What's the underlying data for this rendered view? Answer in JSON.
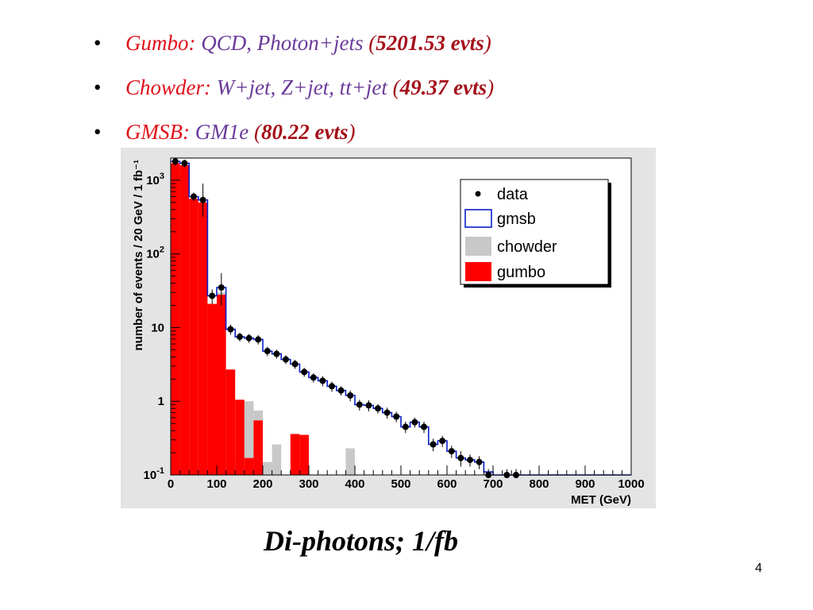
{
  "slide": {
    "bullets": [
      {
        "name": "Gumbo",
        "sep": ":",
        "desc": " QCD, Photon+jets ",
        "open": "(",
        "count": "5201.53 evts",
        "close": ")"
      },
      {
        "name": "Chowder",
        "sep": ":",
        "desc": " W+jet, Z+jet, tt+jet ",
        "open": "(",
        "count": "49.37 evts",
        "close": ")"
      },
      {
        "name": "GMSB",
        "sep": ":",
        "desc": " GM1e  ",
        "open": "(",
        "count": "80.22 evts",
        "close": ")"
      }
    ],
    "caption": "Di-photons; 1/fb",
    "page_number": "4"
  },
  "chart_data": {
    "type": "bar",
    "xlabel": "MET (GeV)",
    "ylabel": "number of events / 20 GeV / 1 fb⁻¹",
    "xlim": [
      0,
      1000
    ],
    "ylim": [
      0.1,
      2000
    ],
    "log_y": true,
    "grid": false,
    "legend_position": "top-right",
    "x_tick_labels": [
      "0",
      "100",
      "200",
      "300",
      "400",
      "500",
      "600",
      "700",
      "800",
      "900",
      "1000"
    ],
    "y_tick_labels": [
      {
        "value": 0.1,
        "base": "10",
        "sup": "-1"
      },
      {
        "value": 1,
        "base": "1",
        "sup": ""
      },
      {
        "value": 10,
        "base": "10",
        "sup": ""
      },
      {
        "value": 100,
        "base": "10",
        "sup": "2"
      },
      {
        "value": 1000,
        "base": "10",
        "sup": "3"
      }
    ],
    "bin_width": 20,
    "bin_edges_start": 0,
    "series": [
      {
        "name": "data",
        "style": "points",
        "values": [
          1800,
          1700,
          600,
          540,
          27,
          35,
          9.5,
          7.5,
          7.2,
          6.9,
          4.8,
          4.4,
          3.7,
          3.2,
          2.5,
          2.1,
          1.9,
          1.6,
          1.4,
          1.2,
          0.9,
          0.88,
          0.8,
          0.7,
          0.62,
          0.45,
          0.52,
          0.45,
          0.26,
          0.29,
          0.21,
          0.17,
          0.16,
          0.15,
          0.1,
          null,
          0.1,
          0.1,
          null,
          null,
          null,
          null,
          null,
          null,
          null,
          null,
          null,
          null,
          null,
          null
        ],
        "err_up": [
          220,
          200,
          80,
          360,
          6,
          20,
          1.5,
          1,
          1,
          1,
          0.7,
          0.6,
          0.5,
          0.45,
          0.35,
          0.3,
          0.3,
          0.25,
          0.2,
          0.2,
          0.15,
          0.15,
          0.12,
          0.12,
          0.1,
          0.08,
          0.08,
          0.08,
          0.05,
          0.05,
          0.04,
          0.04,
          0.03,
          0.03,
          0.02,
          null,
          0.02,
          0.02,
          null,
          null,
          null,
          null,
          null,
          null,
          null,
          null,
          null,
          null,
          null,
          null
        ],
        "err_down": [
          220,
          200,
          80,
          220,
          6,
          15,
          1.5,
          1,
          1,
          1,
          0.7,
          0.6,
          0.5,
          0.45,
          0.35,
          0.3,
          0.3,
          0.25,
          0.2,
          0.2,
          0.15,
          0.15,
          0.12,
          0.12,
          0.1,
          0.08,
          0.08,
          0.08,
          0.05,
          0.05,
          0.04,
          0.04,
          0.03,
          0.03,
          0.02,
          null,
          0.02,
          0.02,
          null,
          null,
          null,
          null,
          null,
          null,
          null,
          null,
          null,
          null,
          null,
          null
        ]
      },
      {
        "name": "gmsb",
        "style": "step-outline",
        "values": [
          1800,
          1700,
          600,
          540,
          27,
          35,
          9.5,
          7.5,
          7.2,
          6.9,
          4.8,
          4.4,
          3.7,
          3.2,
          2.5,
          2.1,
          1.9,
          1.6,
          1.4,
          1.2,
          0.9,
          0.88,
          0.8,
          0.7,
          0.62,
          0.45,
          0.52,
          0.45,
          0.26,
          0.29,
          0.21,
          0.17,
          0.16,
          0.15,
          0.11,
          0.1,
          0.1,
          0.1,
          0.1,
          0.1,
          0.1,
          0.1,
          0.1,
          0.1,
          0.1,
          0.1,
          0.1,
          0.1,
          0.1,
          0.1
        ]
      },
      {
        "name": "chowder",
        "style": "filled",
        "values": [
          1500,
          1400,
          500,
          450,
          21,
          30,
          0.15,
          0.15,
          1.0,
          0.75,
          0.15,
          0.26,
          0.1,
          0.1,
          0.1,
          0.1,
          0.1,
          0.1,
          0.1,
          0.23,
          0.1,
          0.1,
          0.1,
          0.1,
          0.1,
          0.1,
          0.1,
          0.1,
          0.1,
          0.1,
          0.1,
          0.1,
          0.1,
          0.1,
          0.1,
          0.1,
          0.1,
          0.1,
          0.1,
          0.1,
          0.1,
          0.1,
          0.1,
          0.1,
          0.1,
          0.1,
          0.1,
          0.1,
          0.1,
          0.1
        ]
      },
      {
        "name": "gumbo",
        "style": "filled",
        "values": [
          1700,
          1600,
          560,
          500,
          21,
          28,
          2.7,
          1.05,
          0.17,
          0.55,
          0.1,
          0.1,
          0.1,
          0.36,
          0.35,
          0.1,
          0.1,
          0.1,
          0.1,
          0.1,
          0.1,
          0.1,
          0.1,
          0.1,
          0.1,
          0.1,
          0.1,
          0.1,
          0.1,
          0.1,
          0.1,
          0.1,
          0.1,
          0.1,
          0.1,
          0.1,
          0.1,
          0.1,
          0.1,
          0.1,
          0.1,
          0.1,
          0.1,
          0.1,
          0.1,
          0.1,
          0.1,
          0.1,
          0.1,
          0.1
        ]
      }
    ],
    "colors": {
      "gumbo": "#ff0000",
      "chowder": "#c8c8c8",
      "gmsb": "#0a1ec8",
      "data": "#000000",
      "frame_bg": "#e4e4e4",
      "plot_bg": "#ffffff"
    }
  }
}
